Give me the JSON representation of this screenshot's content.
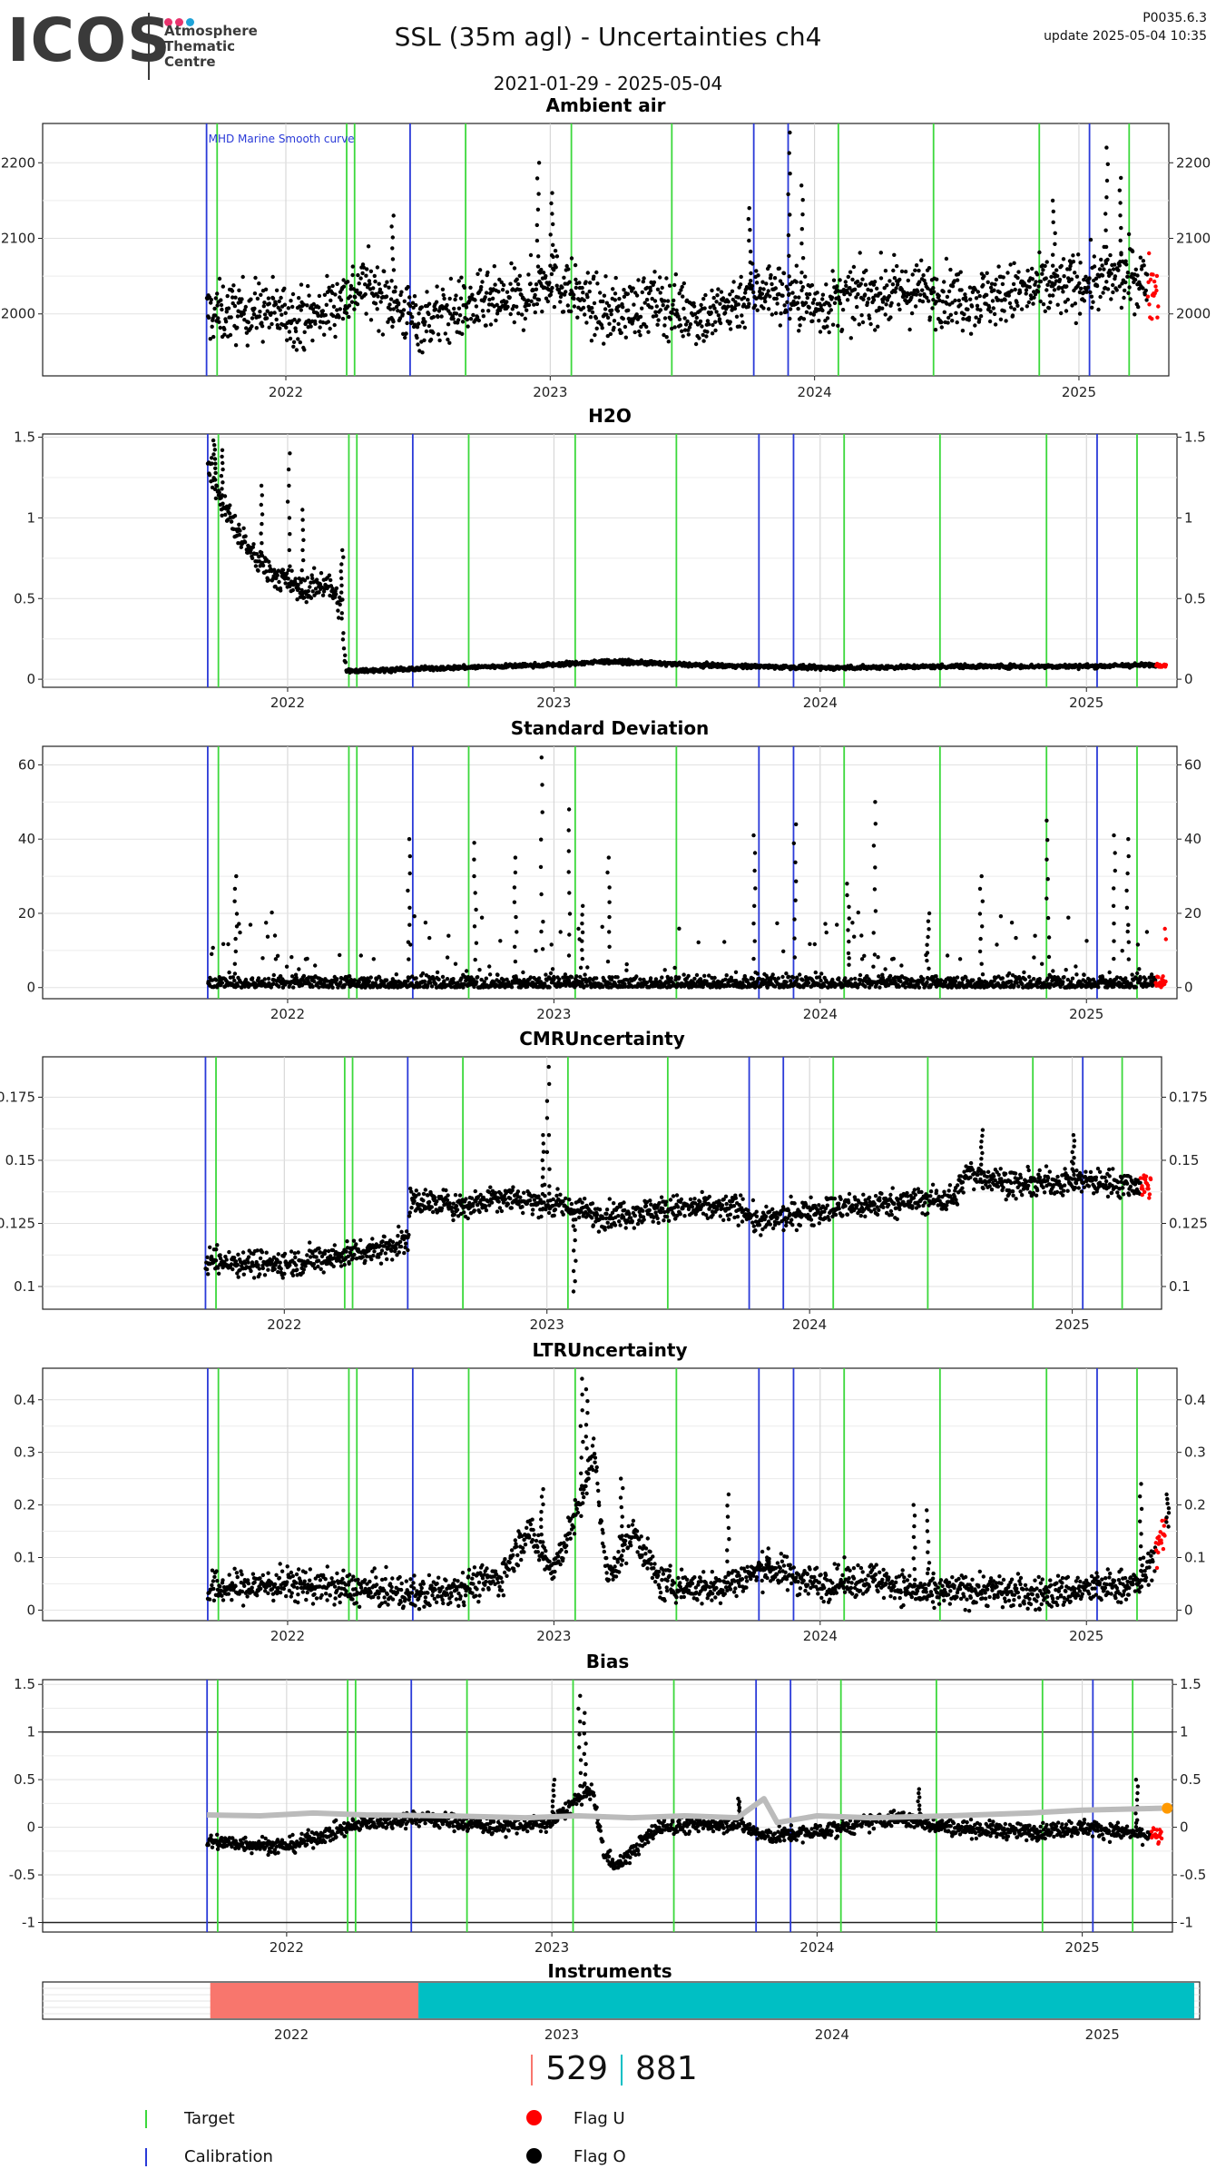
{
  "header": {
    "logo": "ICOS",
    "logo_subtitle": [
      "Atmosphere",
      "Thematic",
      "Centre"
    ],
    "logo_dot_colors": [
      "#e8336d",
      "#e8336d",
      "#1fa3d8"
    ],
    "title": "SSL  (35m agl) - Uncertainties ch4",
    "date_range": "2021-01-29 - 2025-05-04",
    "version": "P0035.6.3",
    "update": "update  2025-05-04 10:35"
  },
  "chart_data": [
    {
      "type": "scatter",
      "title": "Ambient air",
      "xlim": [
        2021.08,
        2025.34
      ],
      "ylim": [
        1918,
        2252
      ],
      "yticks": [
        2000,
        2100,
        2200
      ],
      "annotation": "MHD Marine Smooth curve",
      "profile": [
        [
          2021.7,
          2000
        ],
        [
          2021.9,
          2005
        ],
        [
          2022.1,
          1995
        ],
        [
          2022.3,
          2040
        ],
        [
          2022.5,
          1990
        ],
        [
          2022.7,
          2010
        ],
        [
          2022.9,
          2020
        ],
        [
          2023.0,
          2050
        ],
        [
          2023.2,
          2000
        ],
        [
          2023.4,
          2015
        ],
        [
          2023.6,
          1995
        ],
        [
          2023.8,
          2035
        ],
        [
          2024.0,
          2010
        ],
        [
          2024.2,
          2025
        ],
        [
          2024.4,
          2030
        ],
        [
          2024.6,
          2020
        ],
        [
          2024.8,
          2030
        ],
        [
          2025.0,
          2040
        ],
        [
          2025.2,
          2050
        ],
        [
          2025.3,
          2035
        ]
      ],
      "noise": 38,
      "spikes": [
        [
          2022.4,
          2130
        ],
        [
          2022.95,
          2200
        ],
        [
          2023.0,
          2160
        ],
        [
          2023.75,
          2140
        ],
        [
          2023.9,
          2240
        ],
        [
          2023.95,
          2170
        ],
        [
          2025.1,
          2220
        ],
        [
          2025.15,
          2180
        ],
        [
          2024.9,
          2150
        ]
      ]
    },
    {
      "type": "scatter",
      "title": "H2O",
      "xlim": [
        2021.08,
        2025.34
      ],
      "ylim": [
        -0.05,
        1.52
      ],
      "yticks": [
        0.0,
        0.5,
        1.0,
        1.5
      ],
      "profile": [
        [
          2021.7,
          1.35
        ],
        [
          2021.75,
          1.1
        ],
        [
          2021.85,
          0.8
        ],
        [
          2021.95,
          0.65
        ],
        [
          2022.05,
          0.55
        ],
        [
          2022.15,
          0.6
        ],
        [
          2022.2,
          0.45
        ],
        [
          2022.22,
          0.05
        ],
        [
          2022.6,
          0.07
        ],
        [
          2023.0,
          0.09
        ],
        [
          2023.2,
          0.11
        ],
        [
          2023.5,
          0.09
        ],
        [
          2024.0,
          0.07
        ],
        [
          2024.5,
          0.08
        ],
        [
          2025.0,
          0.08
        ],
        [
          2025.3,
          0.09
        ]
      ],
      "noise": 0.08,
      "noise_until": 2022.22,
      "spikes": [
        [
          2021.72,
          1.48
        ],
        [
          2021.75,
          1.42
        ],
        [
          2021.9,
          1.2
        ],
        [
          2022.0,
          1.4
        ],
        [
          2022.05,
          1.05
        ],
        [
          2022.2,
          0.8
        ]
      ]
    },
    {
      "type": "scatter",
      "title": "Standard Deviation",
      "xlim": [
        2021.08,
        2025.34
      ],
      "ylim": [
        -3,
        65
      ],
      "yticks": [
        0,
        20,
        40,
        60
      ],
      "profile": [
        [
          2021.7,
          3
        ],
        [
          2025.3,
          3
        ]
      ],
      "noise": 3,
      "spikes": [
        [
          2022.45,
          40
        ],
        [
          2022.7,
          39
        ],
        [
          2022.85,
          35
        ],
        [
          2022.95,
          62
        ],
        [
          2023.05,
          48
        ],
        [
          2023.2,
          35
        ],
        [
          2023.75,
          41
        ],
        [
          2023.9,
          44
        ],
        [
          2024.2,
          50
        ],
        [
          2024.6,
          30
        ],
        [
          2024.85,
          45
        ],
        [
          2025.1,
          41
        ],
        [
          2025.15,
          40
        ],
        [
          2021.8,
          30
        ],
        [
          2023.1,
          22
        ],
        [
          2024.1,
          28
        ],
        [
          2024.4,
          20
        ]
      ]
    },
    {
      "type": "scatter",
      "title": "CMRUncertainty",
      "xlim": [
        2021.08,
        2025.34
      ],
      "ylim": [
        0.091,
        0.191
      ],
      "yticks": [
        0.1,
        0.125,
        0.15,
        0.175
      ],
      "profile": [
        [
          2021.7,
          0.11
        ],
        [
          2022.0,
          0.109
        ],
        [
          2022.2,
          0.112
        ],
        [
          2022.35,
          0.115
        ],
        [
          2022.47,
          0.118
        ],
        [
          2022.48,
          0.134
        ],
        [
          2022.7,
          0.132
        ],
        [
          2022.8,
          0.136
        ],
        [
          2023.0,
          0.133
        ],
        [
          2023.2,
          0.128
        ],
        [
          2023.5,
          0.131
        ],
        [
          2023.75,
          0.131
        ],
        [
          2023.8,
          0.125
        ],
        [
          2024.0,
          0.13
        ],
        [
          2024.3,
          0.133
        ],
        [
          2024.55,
          0.135
        ],
        [
          2024.6,
          0.145
        ],
        [
          2024.8,
          0.14
        ],
        [
          2025.0,
          0.142
        ],
        [
          2025.3,
          0.14
        ]
      ],
      "noise": 0.005,
      "spikes": [
        [
          2023.0,
          0.187
        ],
        [
          2023.1,
          0.098
        ],
        [
          2022.98,
          0.16
        ],
        [
          2024.65,
          0.162
        ],
        [
          2025.0,
          0.16
        ]
      ]
    },
    {
      "type": "scatter",
      "title": "LTRUncertainty",
      "xlim": [
        2021.08,
        2025.34
      ],
      "ylim": [
        -0.02,
        0.46
      ],
      "yticks": [
        0.0,
        0.1,
        0.2,
        0.3,
        0.4
      ],
      "profile": [
        [
          2021.7,
          0.04
        ],
        [
          2022.0,
          0.05
        ],
        [
          2022.5,
          0.03
        ],
        [
          2022.8,
          0.06
        ],
        [
          2022.9,
          0.15
        ],
        [
          2023.0,
          0.08
        ],
        [
          2023.1,
          0.2
        ],
        [
          2023.15,
          0.3
        ],
        [
          2023.2,
          0.06
        ],
        [
          2023.3,
          0.15
        ],
        [
          2023.4,
          0.05
        ],
        [
          2023.6,
          0.04
        ],
        [
          2023.8,
          0.08
        ],
        [
          2024.0,
          0.05
        ],
        [
          2024.2,
          0.06
        ],
        [
          2024.4,
          0.03
        ],
        [
          2024.6,
          0.04
        ],
        [
          2024.8,
          0.03
        ],
        [
          2025.0,
          0.04
        ],
        [
          2025.2,
          0.05
        ],
        [
          2025.3,
          0.15
        ]
      ],
      "noise": 0.03,
      "spikes": [
        [
          2023.1,
          0.44
        ],
        [
          2023.12,
          0.42
        ],
        [
          2023.25,
          0.25
        ],
        [
          2022.95,
          0.23
        ],
        [
          2023.65,
          0.22
        ],
        [
          2024.35,
          0.2
        ],
        [
          2024.4,
          0.19
        ],
        [
          2025.2,
          0.24
        ],
        [
          2025.3,
          0.22
        ],
        [
          2023.8,
          0.1
        ]
      ]
    },
    {
      "type": "scatter",
      "title": "Bias",
      "xlim": [
        2021.08,
        2025.34
      ],
      "ylim": [
        -1.1,
        1.55
      ],
      "yticks": [
        -1.0,
        -0.5,
        0.0,
        0.5,
        1.0,
        1.5
      ],
      "hlines": [
        -1.0,
        1.0
      ],
      "profile": [
        [
          2021.7,
          -0.15
        ],
        [
          2022.0,
          -0.2
        ],
        [
          2022.3,
          0.05
        ],
        [
          2022.5,
          0.1
        ],
        [
          2022.8,
          0.0
        ],
        [
          2023.0,
          0.05
        ],
        [
          2023.1,
          0.3
        ],
        [
          2023.15,
          0.4
        ],
        [
          2023.2,
          -0.3
        ],
        [
          2023.25,
          -0.4
        ],
        [
          2023.4,
          0.0
        ],
        [
          2023.7,
          0.05
        ],
        [
          2023.8,
          -0.1
        ],
        [
          2024.0,
          -0.05
        ],
        [
          2024.3,
          0.1
        ],
        [
          2024.5,
          0.0
        ],
        [
          2024.8,
          -0.05
        ],
        [
          2025.0,
          0.0
        ],
        [
          2025.3,
          -0.1
        ]
      ],
      "noise": 0.08,
      "spikes": [
        [
          2023.1,
          1.38
        ],
        [
          2023.12,
          1.2
        ],
        [
          2023.0,
          0.5
        ],
        [
          2024.38,
          0.4
        ],
        [
          2025.2,
          0.5
        ],
        [
          2023.7,
          0.3
        ]
      ],
      "smooth_curve": [
        [
          2021.7,
          0.13
        ],
        [
          2021.9,
          0.12
        ],
        [
          2022.1,
          0.15
        ],
        [
          2022.3,
          0.13
        ],
        [
          2022.6,
          0.12
        ],
        [
          2022.9,
          0.1
        ],
        [
          2023.1,
          0.12
        ],
        [
          2023.3,
          0.1
        ],
        [
          2023.5,
          0.12
        ],
        [
          2023.7,
          0.1
        ],
        [
          2023.8,
          0.3
        ],
        [
          2023.85,
          0.05
        ],
        [
          2024.0,
          0.12
        ],
        [
          2024.2,
          0.1
        ],
        [
          2024.5,
          0.12
        ],
        [
          2024.8,
          0.15
        ],
        [
          2025.0,
          0.18
        ],
        [
          2025.3,
          0.2
        ]
      ],
      "last_point": [
        2025.32,
        0.2
      ]
    }
  ],
  "shared": {
    "x_ticks": [
      2022,
      2023,
      2024,
      2025
    ],
    "target_lines": [
      2021.74,
      2022.23,
      2022.26,
      2022.68,
      2023.08,
      2023.46,
      2024.09,
      2024.45,
      2024.85,
      2025.19
    ],
    "calibration_lines": [
      2021.7,
      2022.47,
      2023.77,
      2023.9,
      2025.04
    ],
    "colors": {
      "target": "#3cd83c",
      "calibration": "#2a3ad8",
      "flag_u": "#ff0000",
      "flag_o": "#000000",
      "smooth": "#bbbbbb",
      "last_point": "#ff9900",
      "inst1": "#f8766d",
      "inst2": "#00bfc4"
    }
  },
  "instruments": {
    "title": "Instruments",
    "segments": [
      {
        "start": 2021.7,
        "end": 2022.47,
        "count": "529",
        "color": "#f8766d"
      },
      {
        "start": 2022.47,
        "end": 2025.34,
        "count": "881",
        "color": "#00bfc4"
      }
    ],
    "x_ticks": [
      2022,
      2023,
      2024,
      2025
    ]
  },
  "legend": {
    "target": "Target",
    "calibration": "Calibration",
    "flag_u": "Flag U",
    "flag_o": "Flag O"
  }
}
